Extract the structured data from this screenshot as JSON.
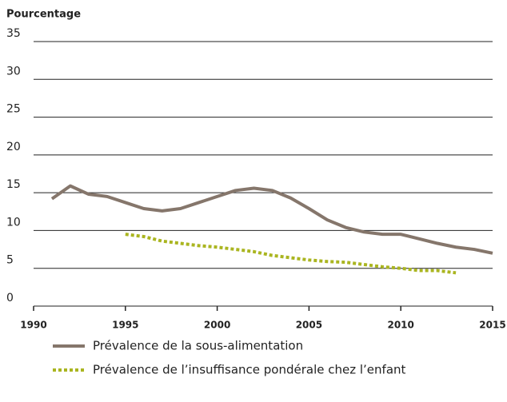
{
  "chart_data": {
    "type": "line",
    "y_label": "Pourcentage",
    "x": [
      1991,
      1992,
      1993,
      1994,
      1995,
      1996,
      1997,
      1998,
      1999,
      2000,
      2001,
      2002,
      2003,
      2004,
      2005,
      2006,
      2007,
      2008,
      2009,
      2010,
      2011,
      2012,
      2013,
      2014,
      2015
    ],
    "series": [
      {
        "name": "Prévalence de la sous-alimentation",
        "color": "#85766b",
        "style": "solid",
        "values": [
          14.2,
          15.9,
          14.8,
          14.5,
          13.7,
          12.9,
          12.6,
          12.9,
          13.7,
          14.5,
          15.3,
          15.6,
          15.3,
          14.3,
          12.9,
          11.4,
          10.4,
          9.8,
          9.5,
          9.5,
          8.9,
          8.3,
          7.8,
          7.5,
          7.0
        ]
      },
      {
        "name": "Prévalence de l’insuffisance pondérale chez l’enfant",
        "color": "#aab520",
        "style": "dotted",
        "values": [
          null,
          null,
          null,
          null,
          9.5,
          9.2,
          8.6,
          8.3,
          8.0,
          7.8,
          7.5,
          7.2,
          6.7,
          6.4,
          6.1,
          5.9,
          5.8,
          5.5,
          5.2,
          5.0,
          4.7,
          4.7,
          4.4,
          null,
          null
        ]
      }
    ],
    "xlim": [
      1990,
      2015
    ],
    "xticks": [
      1990,
      1995,
      2000,
      2005,
      2010,
      2015
    ],
    "ylim": [
      0,
      35
    ],
    "yticks": [
      0,
      5,
      10,
      15,
      20,
      25,
      30,
      35
    ],
    "grid": true,
    "legend": "bottom"
  }
}
